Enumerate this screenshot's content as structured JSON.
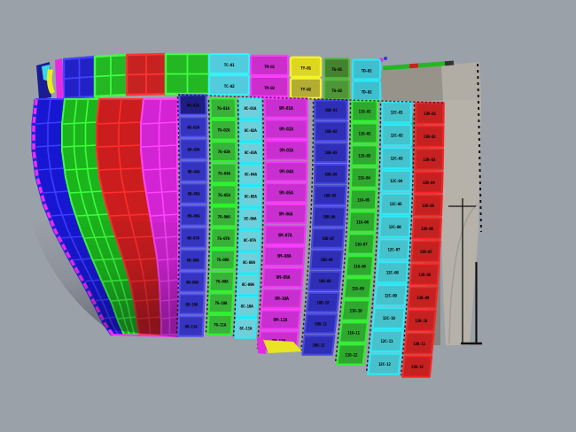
{
  "viewport": {
    "background": "#9ba1a9",
    "description": "3D CAD viewport showing ship hull shell plating colored by strake"
  },
  "model": {
    "palette": {
      "seam": "#0c0c0c",
      "label": "#060606",
      "shade_dark": "rgba(0,0,25,0.32)",
      "stem_edge": "#f22cf2",
      "stem_inner": "#2222e0",
      "axis_marker": "#111111"
    },
    "stern_block": {
      "top_left_face": "#97938b",
      "top_right_face": "#b1ada4",
      "slab_face": "#b6b2a9",
      "shadow_face": "#85817a",
      "arc_line": "#a19d94",
      "edge_dash": "#141414",
      "deck_strip": [
        "#23b823",
        "#c62222",
        "#23b823",
        "#333333"
      ],
      "corner_dots": [
        "#e22ce2",
        "#3535e0"
      ]
    },
    "bow_tip": {
      "navy": "#1b1b92",
      "cyan": "#38d8e8",
      "yellow": "#eeea22",
      "magenta": "#e22ce2"
    },
    "deck_panels": [
      {
        "id": "deck-blue",
        "fill": "#2121c6",
        "line": "#4444ff"
      },
      {
        "id": "deck-green",
        "fill": "#23b823",
        "line": "#42ff42"
      },
      {
        "id": "deck-red",
        "fill": "#c62222",
        "line": "#ff3333"
      },
      {
        "id": "deck-green2",
        "fill": "#23b823",
        "line": "#42ff42"
      }
    ],
    "deck_plates": [
      {
        "id": "deck-cyan",
        "fill": "#52ccdc",
        "fill2": "#52ccdc",
        "border": "#38f0ff",
        "labels": [
          "TC-01",
          "TC-02"
        ]
      },
      {
        "id": "deck-magenta",
        "fill": "#cb2ecb",
        "fill2": "#cb2ecb",
        "border": "#f73ef7",
        "labels": [
          "TM-01",
          "TM-02"
        ]
      },
      {
        "id": "deck-yellow",
        "fill": "#ddd722",
        "fill2": "#b3ad33",
        "border": "#f5f52c",
        "labels": [
          "TY-01",
          "TY-02"
        ]
      },
      {
        "id": "deck-dkgreen",
        "fill": "#45822f",
        "fill2": "#4e9636",
        "border": "#52b93e",
        "labels": [
          "TG-01",
          "TG-02"
        ]
      },
      {
        "id": "deck-cyan2",
        "fill": "#3fbfce",
        "fill2": "#3fbfce",
        "border": "#2ce6f6",
        "labels": [
          "TD-01",
          "TD-02"
        ]
      }
    ],
    "bow_strakes": [
      {
        "id": "bow-blue",
        "fill": "#1717d2",
        "line": "#3d3dff"
      },
      {
        "id": "bow-green",
        "fill": "#1cb41c",
        "line": "#3cff3c"
      },
      {
        "id": "bow-red",
        "fill": "#cb1d1d",
        "line": "#ff2e2e"
      },
      {
        "id": "bow-magenta",
        "fill": "#d324d3",
        "line": "#ff44ff"
      }
    ],
    "shell_columns": [
      {
        "id": "c6",
        "color": "blue",
        "fill": "#3434c0",
        "border": "#5252ea",
        "dark_fill": "#1d1d84",
        "labels": [
          "6B-01A",
          "6B-02A",
          "6B-03A",
          "6B-04A",
          "6B-05A",
          "6B-06A",
          "6B-07A",
          "6B-08A",
          "6B-09A",
          "6B-10A",
          "6B-11A"
        ]
      },
      {
        "id": "c7",
        "color": "green",
        "fill": "#38b238",
        "border": "#2ff22f",
        "labels": [
          "7G-01A",
          "7G-02A",
          "7G-03A",
          "7G-04A",
          "7G-05A",
          "7G-06A",
          "7G-07A",
          "7G-08A",
          "7G-09A",
          "7G-10A",
          "7G-11A"
        ]
      },
      {
        "id": "c8",
        "color": "cyan",
        "fill": "#6fd0da",
        "border": "#2deafa",
        "labels": [
          "8C-01A",
          "8C-02A",
          "8C-03A",
          "8C-04A",
          "8C-05A",
          "8C-06A",
          "8C-07A",
          "8C-08A",
          "8C-09A",
          "8C-10A",
          "8C-11A"
        ]
      },
      {
        "id": "c9",
        "color": "magenta",
        "fill": "#c92fd0",
        "border": "#ef3cf4",
        "labels": [
          "9M-01A",
          "9M-02A",
          "9M-03A",
          "9M-04A",
          "9M-05A",
          "9M-06A",
          "9M-07A",
          "9M-08A",
          "9M-09A",
          "9M-10A",
          "9M-11A",
          "9M-12A"
        ]
      },
      {
        "id": "c10",
        "color": "blue",
        "fill": "#2e2eb6",
        "border": "#4848e6",
        "labels": [
          "10B-01",
          "10B-02",
          "10B-03",
          "10B-04",
          "10B-05",
          "10B-06",
          "10B-07",
          "10B-08",
          "10B-09",
          "10B-10",
          "10B-11",
          "10B-12"
        ]
      },
      {
        "id": "c11",
        "color": "green",
        "fill": "#2ea82e",
        "border": "#2ff22f",
        "labels": [
          "11G-01",
          "11G-02",
          "11G-03",
          "11G-04",
          "11G-05",
          "11G-06",
          "11G-07",
          "11G-08",
          "11G-09",
          "11G-10",
          "11G-11",
          "11G-12"
        ]
      },
      {
        "id": "c12",
        "color": "cyan",
        "fill": "#46c2cc",
        "border": "#30e8f6",
        "labels": [
          "12C-01",
          "12C-02",
          "12C-03",
          "12C-04",
          "12C-05",
          "12C-06",
          "12C-07",
          "12C-08",
          "12C-09",
          "12C-10",
          "12C-11",
          "12C-12"
        ]
      },
      {
        "id": "c13",
        "color": "red",
        "fill": "#c52121",
        "border": "#f32626",
        "labels": [
          "13R-01",
          "13R-02",
          "13R-03",
          "13R-04",
          "13R-05",
          "13R-06",
          "13R-07",
          "13R-08",
          "13R-09",
          "13R-10",
          "13R-11",
          "13R-12"
        ]
      }
    ],
    "bottom_slivers": {
      "yellow": "#e8e424",
      "magenta": "#e22ce2"
    }
  }
}
